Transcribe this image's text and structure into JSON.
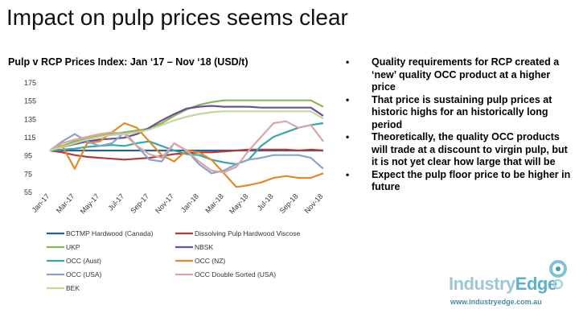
{
  "slide": {
    "title": "Impact on pulp prices seems clear",
    "subtitle": "Pulp v RCP Prices Index: Jan ‘17 – Nov ‘18 (USD/t)",
    "bullets": [
      "Quality requirements for RCP created a ‘new’ quality OCC product at a higher price",
      "That price is sustaining pulp prices at historic highs for an historically long period",
      "Theoretically, the quality OCC products will trade at a discount to virgin pulp, but it is not yet clear how large that will be",
      "Expect the pulp floor price to be higher in future"
    ],
    "bullet_marker": "•",
    "logo": {
      "word1": "Industry",
      "word2": "Edge"
    },
    "website": "www.industryedge.com.au"
  },
  "chart_data": {
    "type": "line",
    "title": "Pulp v RCP Prices Index: Jan ‘17 – Nov ‘18 (USD/t)",
    "ylim": [
      55,
      175
    ],
    "yticks": [
      55,
      75,
      95,
      115,
      135,
      155,
      175
    ],
    "grid": false,
    "legend_position": "bottom",
    "tick_labels": [
      "Jan-17",
      "Mar-17",
      "May-17",
      "Jul-17",
      "Sep-17",
      "Nov-17",
      "Jan-18",
      "Mar-18",
      "May-18",
      "Jul-18",
      "Sep-18",
      "Nov-18"
    ],
    "x": [
      "Jan-17",
      "Feb-17",
      "Mar-17",
      "Apr-17",
      "May-17",
      "Jun-17",
      "Jul-17",
      "Aug-17",
      "Sep-17",
      "Oct-17",
      "Nov-17",
      "Dec-17",
      "Jan-18",
      "Feb-18",
      "Mar-18",
      "Apr-18",
      "May-18",
      "Jun-18",
      "Jul-18",
      "Aug-18",
      "Sep-18",
      "Oct-18",
      "Nov-18"
    ],
    "series": [
      {
        "name": "BCTMP Hardwood (Canada)",
        "color": "#2f5f8a",
        "values": [
          100,
          100,
          100,
          100,
          100,
          100,
          100,
          100,
          100,
          100,
          100,
          100,
          100,
          100,
          100,
          100,
          100,
          100,
          100,
          100,
          100,
          100,
          100
        ]
      },
      {
        "name": "Dissolving Pulp Hardwood Viscose",
        "color": "#b03c3c",
        "values": [
          100,
          98,
          95,
          93,
          92,
          91,
          90,
          91,
          92,
          94,
          96,
          97,
          98,
          98,
          99,
          100,
          101,
          101,
          101,
          101,
          100,
          101,
          100
        ]
      },
      {
        "name": "UKP",
        "color": "#8db356",
        "values": [
          100,
          105,
          110,
          113,
          116,
          118,
          120,
          122,
          124,
          130,
          138,
          145,
          150,
          153,
          155,
          155,
          155,
          155,
          155,
          155,
          155,
          155,
          148
        ]
      },
      {
        "name": "NBSK",
        "color": "#6a4f9a",
        "values": [
          100,
          104,
          107,
          110,
          112,
          113,
          114,
          118,
          125,
          133,
          140,
          146,
          148,
          149,
          148,
          148,
          148,
          147,
          147,
          147,
          147,
          147,
          138
        ]
      },
      {
        "name": "OCC (Aust)",
        "color": "#3aa7a7",
        "values": [
          100,
          101,
          102,
          104,
          105,
          106,
          105,
          108,
          110,
          105,
          100,
          96,
          95,
          90,
          87,
          85,
          90,
          105,
          115,
          120,
          125,
          128,
          130
        ]
      },
      {
        "name": "OCC (NZ)",
        "color": "#e08a2e",
        "values": [
          100,
          105,
          80,
          108,
          110,
          120,
          130,
          125,
          110,
          95,
          88,
          100,
          98,
          90,
          75,
          60,
          62,
          65,
          70,
          72,
          70,
          70,
          75
        ]
      },
      {
        "name": "OCC (USA)",
        "color": "#8aa3c8",
        "values": [
          100,
          110,
          118,
          110,
          105,
          108,
          120,
          105,
          90,
          88,
          108,
          100,
          85,
          75,
          78,
          85,
          90,
          92,
          95,
          95,
          95,
          92,
          80
        ]
      },
      {
        "name": "OCC Double Sorted (USA)",
        "color": "#d9a5a5",
        "values": [
          100,
          108,
          112,
          115,
          118,
          120,
          118,
          105,
          96,
          92,
          108,
          100,
          88,
          78,
          76,
          82,
          100,
          115,
          130,
          132,
          125,
          128,
          110
        ]
      },
      {
        "name": "BEK",
        "color": "#c3d69b",
        "values": [
          100,
          104,
          108,
          112,
          115,
          117,
          118,
          120,
          123,
          128,
          133,
          137,
          140,
          142,
          143,
          143,
          143,
          143,
          143,
          143,
          143,
          143,
          135
        ]
      }
    ],
    "icons": {
      "logo": "industry-edge-logo"
    }
  }
}
